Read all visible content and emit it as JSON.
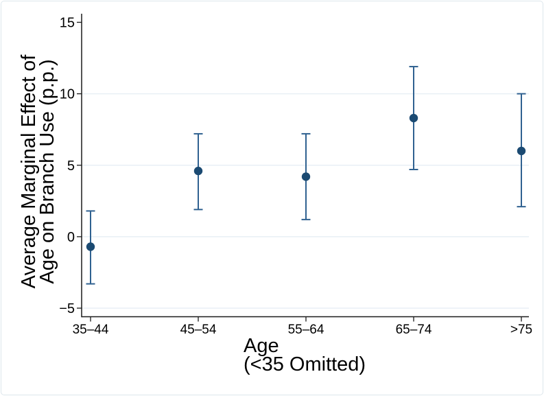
{
  "figure": {
    "background": "#ffffff",
    "border_color": "#dde6ec"
  },
  "chart_data": {
    "type": "scatter",
    "subtype": "coefficient-plot-95ci",
    "title": "",
    "xlabel": [
      "Age",
      "(<35 Omitted)"
    ],
    "ylabel": [
      "Average Marginal Effect of",
      "Age on Branch Use (p.p.)"
    ],
    "categories": [
      "35–44",
      "45–54",
      "55–64",
      "65–74",
      ">75"
    ],
    "series": [
      {
        "name": "Average marginal effect of age on branch use (p.p.)",
        "values": [
          -0.7,
          4.6,
          4.2,
          8.3,
          6.0
        ],
        "ci_low": [
          -3.3,
          1.9,
          1.2,
          4.7,
          2.1
        ],
        "ci_high": [
          1.8,
          7.2,
          7.2,
          11.9,
          10.0
        ]
      }
    ],
    "y_tick_values": [
      15,
      10,
      5,
      0,
      -5
    ],
    "y_tick_labels": [
      "15",
      "10",
      "5",
      "0",
      "−5"
    ],
    "grid_lines_at": [
      10,
      5,
      0,
      -5
    ],
    "ylim": [
      -5.6,
      15.6
    ],
    "grid": true,
    "legend": false,
    "colors": {
      "marker": "#1b4a72",
      "ci": "#2f6190",
      "grid": "#e8eff5",
      "axis": "#1a1a1a",
      "text": "#000000"
    }
  }
}
